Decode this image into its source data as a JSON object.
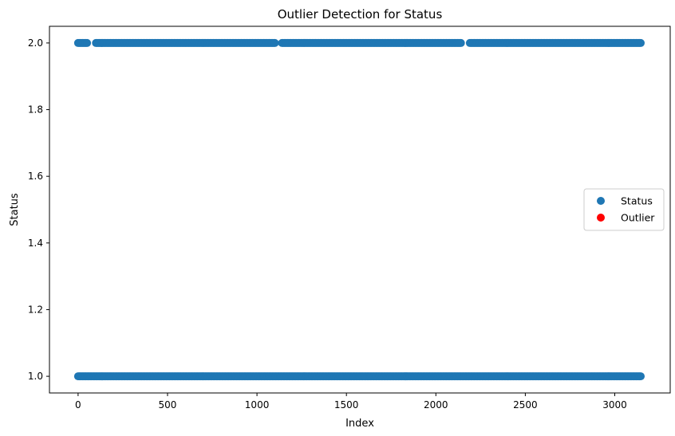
{
  "chart_data": {
    "type": "scatter",
    "title": "Outlier Detection for Status",
    "xlabel": "Index",
    "ylabel": "Status",
    "xlim": [
      -160,
      3310
    ],
    "ylim": [
      0.95,
      2.05
    ],
    "xticks": [
      0,
      500,
      1000,
      1500,
      2000,
      2500,
      3000
    ],
    "yticks": [
      1.0,
      1.2,
      1.4,
      1.6,
      1.8,
      2.0
    ],
    "grid": false,
    "legend_position": "center-right",
    "series": [
      {
        "name": "Status",
        "color": "#1f77b4",
        "value_runs": [
          {
            "y": 2.0,
            "x_start": 0,
            "x_end": 50
          },
          {
            "y": 2.0,
            "x_start": 100,
            "x_end": 1100
          },
          {
            "y": 2.0,
            "x_start": 1140,
            "x_end": 2140
          },
          {
            "y": 2.0,
            "x_start": 2190,
            "x_end": 3145
          },
          {
            "y": 1.0,
            "x_start": 0,
            "x_end": 3145
          }
        ]
      },
      {
        "name": "Outlier",
        "color": "#ff0000",
        "value_runs": []
      }
    ]
  }
}
